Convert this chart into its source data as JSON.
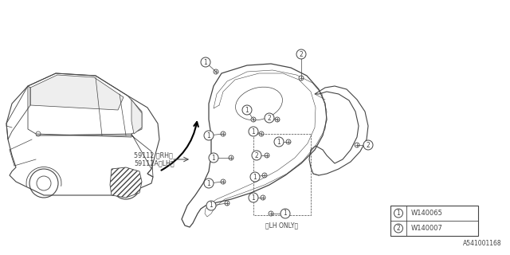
{
  "bg_color": "#ffffff",
  "line_color": "#444444",
  "text_color": "#444444",
  "part_labels": [
    {
      "num": "1",
      "part": "W140065"
    },
    {
      "num": "2",
      "part": "W140007"
    }
  ],
  "part_number_label1": "59112 〈RH〉",
  "part_number_label2": "59112A〈LH〉",
  "lh_only_label": "〈LH ONLY〉",
  "diagram_id": "A541001168"
}
